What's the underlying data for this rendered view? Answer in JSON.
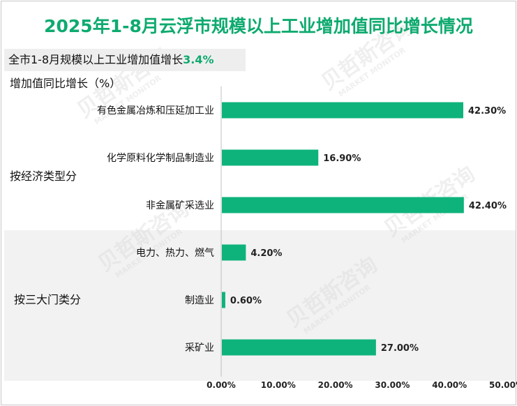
{
  "title": "2025年1-8月云浮市规模以上工业增加值同比增长情况",
  "subtitle": {
    "prefix": "全市1-8月规模以上工业增加值增长",
    "value": "3.4%"
  },
  "colors": {
    "bar": "#0eb37b",
    "title": "#0eaa6f",
    "group_band": "#f2f2f2",
    "axis_line": "#bfbfbf"
  },
  "watermark": [
    "贝哲斯咨询",
    "MARKET MONITOR"
  ],
  "chart_data": {
    "type": "bar",
    "orientation": "horizontal",
    "ylabel": "增加值同比增长（%）",
    "groups": [
      {
        "name": "按经济类型分",
        "categories": [
          "有色金属冶炼和压延加工业",
          "化学原料化学制品制造业",
          "非金属矿采选业"
        ]
      },
      {
        "name": "按三大门类分",
        "categories": [
          "电力、热力、燃气",
          "制造业",
          "采矿业"
        ]
      }
    ],
    "categories": [
      "有色金属冶炼和压延加工业",
      "化学原料化学制品制造业",
      "非金属矿采选业",
      "电力、热力、燃气",
      "制造业",
      "采矿业"
    ],
    "values": [
      42.3,
      16.9,
      42.4,
      4.2,
      0.6,
      27.0
    ],
    "value_labels": [
      "42.30%",
      "16.90%",
      "42.40%",
      "4.20%",
      "0.60%",
      "27.00%"
    ],
    "xlim": [
      0,
      50
    ],
    "xticks": [
      0,
      10,
      20,
      30,
      40,
      50
    ],
    "xtick_labels": [
      "0.00%",
      "10.00%",
      "20.00%",
      "30.00%",
      "40.00%",
      "50.00%"
    ],
    "grid": false,
    "legend": "none"
  }
}
